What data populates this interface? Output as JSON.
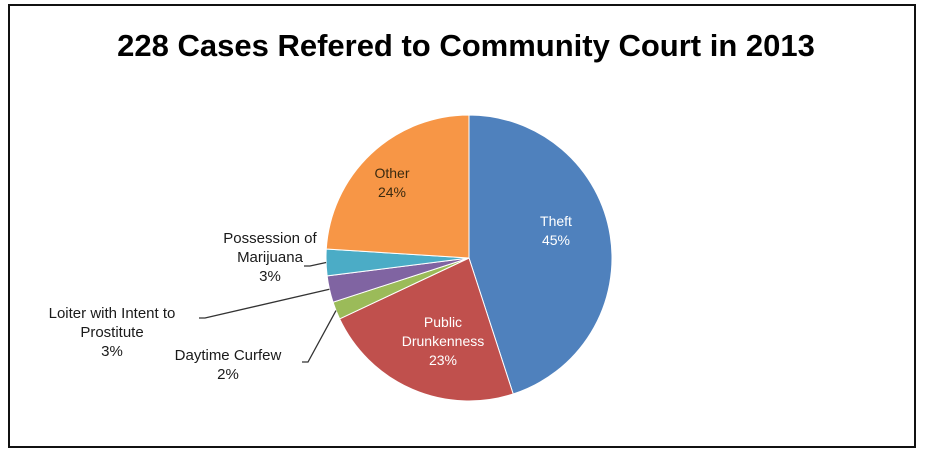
{
  "chart_data": {
    "type": "pie",
    "title": "228 Cases Refered to Community Court in 2013",
    "slices": [
      {
        "label": "Theft",
        "percent_label": "45%",
        "value": 45,
        "color": "#4f81bd"
      },
      {
        "label": "Public Drunkenness",
        "percent_label": "23%",
        "value": 23,
        "color": "#c0504d"
      },
      {
        "label": "Daytime Curfew",
        "percent_label": "2%",
        "value": 2,
        "color": "#9bbb59"
      },
      {
        "label": "Loiter with Intent to Prostitute",
        "percent_label": "3%",
        "value": 3,
        "color": "#8064a2"
      },
      {
        "label": "Possession of Marijuana",
        "percent_label": "3%",
        "value": 3,
        "color": "#4bacc6"
      },
      {
        "label": "Other",
        "percent_label": "24%",
        "value": 24,
        "color": "#f79646"
      }
    ],
    "start": "12 o'clock",
    "direction": "clockwise",
    "legend": "none"
  }
}
